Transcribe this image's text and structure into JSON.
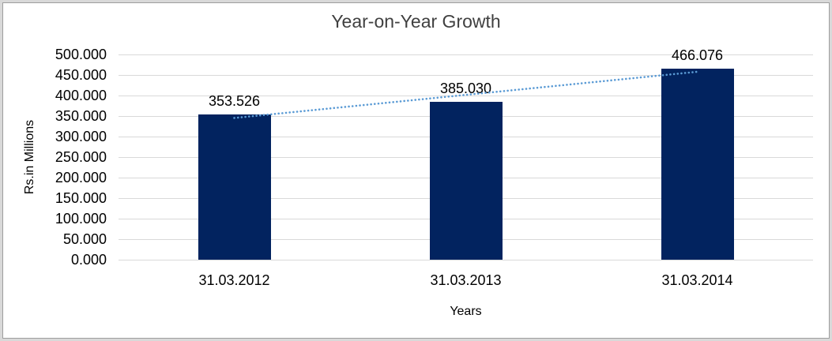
{
  "chart_data": {
    "type": "bar",
    "title": "Year-on-Year Growth",
    "categories": [
      "31.03.2012",
      "31.03.2013",
      "31.03.2014"
    ],
    "values": [
      353.526,
      385.03,
      466.076
    ],
    "value_labels": [
      "353.526",
      "385.030",
      "466.076"
    ],
    "xlabel": "Years",
    "ylabel": "Rs.in Millions",
    "ylim": [
      0,
      500
    ],
    "ytick_step": 50,
    "ytick_labels": [
      "500.000",
      "450.000",
      "400.000",
      "350.000",
      "300.000",
      "250.000",
      "200.000",
      "150.000",
      "100.000",
      "50.000",
      "0.000"
    ],
    "grid": "horizontal",
    "legend": "none",
    "trendline": {
      "type": "linear",
      "style": "dotted"
    },
    "colors": {
      "bar": "#02235f",
      "trendline": "#5b9bd5",
      "gridline": "#d9d9d9",
      "title_text": "#404040",
      "axis_text": "#000000",
      "frame_outer": "#d9d9d9",
      "frame_inner_line": "#9e9e9e",
      "background": "#ffffff"
    }
  }
}
